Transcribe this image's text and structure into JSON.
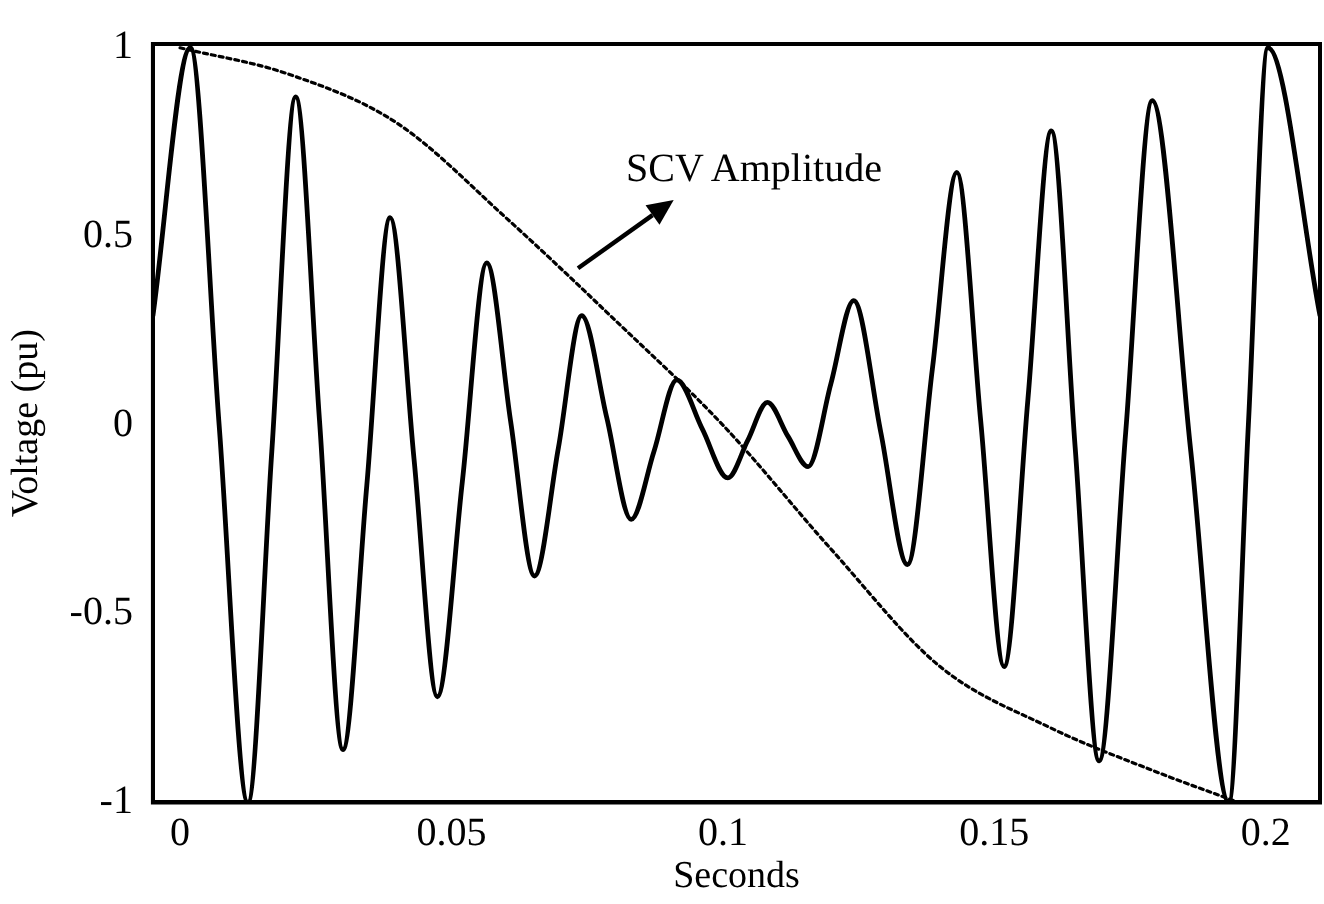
{
  "chart_data": {
    "type": "line",
    "xlabel": "Seconds",
    "ylabel": "Voltage (pu)",
    "xlim": [
      -0.005,
      0.21
    ],
    "ylim": [
      -1,
      1.01
    ],
    "xticks": [
      0,
      0.05,
      0.1,
      0.15,
      0.2
    ],
    "yticks": [
      -1,
      -0.5,
      0,
      0.5,
      1
    ],
    "marker": "none",
    "series": [
      {
        "color": "#000000",
        "line_style": "solid",
        "x": [
          -0.005,
          0.0019,
          0.0072,
          0.0125,
          0.0169,
          0.0213,
          0.0257,
          0.03,
          0.0344,
          0.0387,
          0.0431,
          0.0474,
          0.052,
          0.0565,
          0.0609,
          0.0653,
          0.0697,
          0.074,
          0.0786,
          0.0831,
          0.0873,
          0.0915,
          0.0962,
          0.1009,
          0.1046,
          0.1082,
          0.112,
          0.1157,
          0.1199,
          0.1241,
          0.1291,
          0.134,
          0.1386,
          0.1431,
          0.1475,
          0.1518,
          0.1562,
          0.1605,
          0.1649,
          0.1693,
          0.1742,
          0.1791,
          0.1862,
          0.1932,
          0.1968,
          0.2004,
          0.21
        ],
        "values": [
          0.29,
          1.0,
          0,
          -1.0,
          -0.07,
          0.87,
          0.01,
          -0.86,
          -0.16,
          0.55,
          -0.09,
          -0.72,
          -0.15,
          0.43,
          0.01,
          -0.4,
          -0.06,
          0.29,
          0.02,
          -0.25,
          -0.07,
          0.12,
          -0.01,
          -0.14,
          -0.04,
          0.06,
          -0.03,
          -0.11,
          0.11,
          0.33,
          -0.02,
          -0.37,
          0.15,
          0.67,
          0.01,
          -0.64,
          0.07,
          0.78,
          -0.06,
          -0.89,
          -0.02,
          0.86,
          -0.07,
          -1.0,
          0,
          1.0,
          0.29
        ]
      },
      {
        "name": "SCV Amplitude",
        "color": "#000000",
        "line_style": "dotted",
        "x": [
          0,
          0.02,
          0.04,
          0.06,
          0.08,
          0.1,
          0.12,
          0.14,
          0.16,
          0.18,
          0.195
        ],
        "values": [
          1.0,
          0.93,
          0.8,
          0.55,
          0.28,
          0.0,
          -0.33,
          -0.64,
          -0.8,
          -0.92,
          -1.0
        ]
      }
    ]
  }
}
